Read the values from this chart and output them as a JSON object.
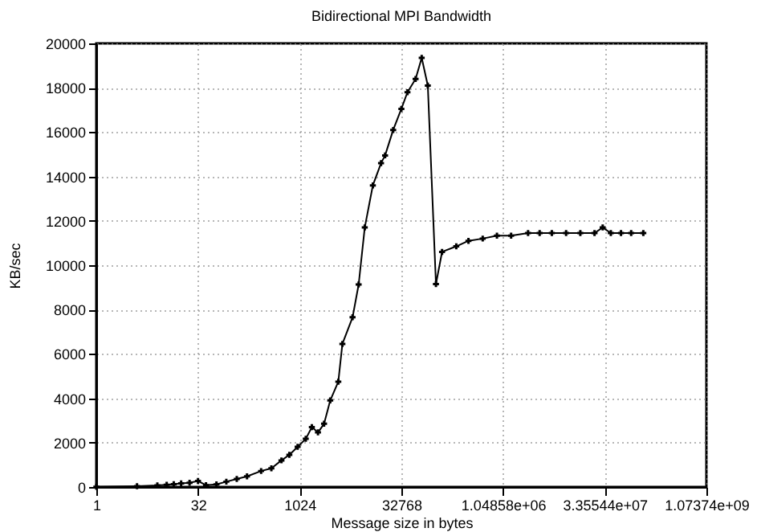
{
  "chart_data": {
    "type": "line",
    "title": "Bidirectional MPI Bandwidth",
    "xlabel": "Message size in bytes",
    "ylabel": "KB/sec",
    "x": [
      1,
      4,
      8,
      11,
      14,
      18,
      24,
      32,
      42,
      60,
      84,
      120,
      170,
      275,
      390,
      550,
      720,
      955,
      1260,
      1550,
      1910,
      2350,
      2900,
      3820,
      4390,
      6210,
      7640,
      9410,
      12400,
      16380,
      18820,
      24800,
      32770,
      40340,
      53220,
      65540,
      80680,
      106500,
      131100,
      212900,
      322600,
      524300,
      851300,
      1380000,
      2460000,
      3650000,
      5530000,
      8990000,
      14600000,
      23700000,
      31300000,
      41300000,
      58400000,
      82600000,
      125000000
    ],
    "series": [
      {
        "color": "#000000",
        "values": [
          10,
          40,
          70,
          100,
          130,
          160,
          190,
          270,
          80,
          120,
          240,
          360,
          480,
          720,
          840,
          1200,
          1450,
          1810,
          2170,
          2700,
          2460,
          2850,
          3900,
          4750,
          6450,
          7650,
          9130,
          11700,
          13600,
          14600,
          14950,
          16100,
          17050,
          17800,
          18400,
          19350,
          18100,
          9150,
          10600,
          10850,
          11100,
          11200,
          11330,
          11330,
          11450,
          11450,
          11450,
          11450,
          11450,
          11450,
          11700,
          11450,
          11450,
          11450,
          11450
        ]
      }
    ],
    "log": "x",
    "xlim": [
      1,
      1073741824
    ],
    "xticks": [
      1,
      32,
      1024,
      32768,
      {
        "value": 1048576,
        "label": "1.04858e+06"
      },
      {
        "value": 33554432,
        "label": "3.35544e+07"
      },
      {
        "value": 1073741824,
        "label": "1.07374e+09"
      }
    ],
    "ylim": [
      0,
      20000
    ],
    "yticks": [
      0,
      2000,
      4000,
      6000,
      8000,
      10000,
      12000,
      14000,
      16000,
      18000,
      20000
    ],
    "grid": true,
    "marker": "cross",
    "line_style": "solid",
    "legend": false
  }
}
